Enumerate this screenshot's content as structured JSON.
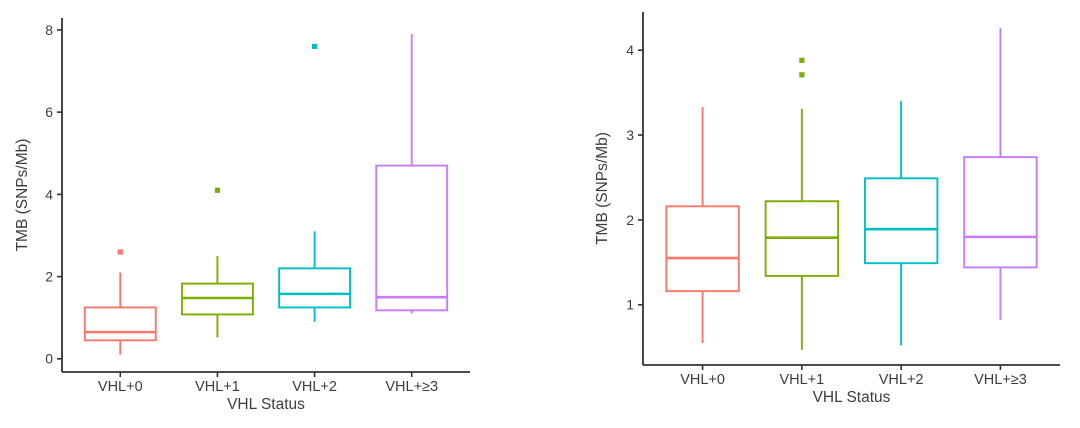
{
  "figure": {
    "description": "Two side-by-side box plots of tumor mutational burden by VHL status"
  },
  "chart_data": [
    {
      "type": "boxplot",
      "title": "",
      "xlabel": "VHL Status",
      "ylabel": "TMB (SNPs/Mb)",
      "categories": [
        "VHL+0",
        "VHL+1",
        "VHL+2",
        "VHL+≥3"
      ],
      "y_ticks": [
        0,
        2,
        4,
        6,
        8
      ],
      "ylim": [
        -0.32,
        8.29
      ],
      "grid": false,
      "legend": "none",
      "series": [
        {
          "category": "VHL+0",
          "color": "#F8766D",
          "whisker_low": 0.1,
          "q1": 0.45,
          "median": 0.65,
          "q3": 1.25,
          "whisker_high": 2.1,
          "outliers": [
            2.6
          ]
        },
        {
          "category": "VHL+1",
          "color": "#7CAE00",
          "whisker_low": 0.52,
          "q1": 1.08,
          "median": 1.48,
          "q3": 1.83,
          "whisker_high": 2.5,
          "outliers": [
            4.1
          ]
        },
        {
          "category": "VHL+2",
          "color": "#00BFC4",
          "whisker_low": 0.9,
          "q1": 1.25,
          "median": 1.58,
          "q3": 2.2,
          "whisker_high": 3.1,
          "outliers": [
            7.6
          ]
        },
        {
          "category": "VHL+≥3",
          "color": "#C77CFF",
          "whisker_low": 1.1,
          "q1": 1.18,
          "median": 1.5,
          "q3": 4.7,
          "whisker_high": 7.9,
          "outliers": []
        }
      ]
    },
    {
      "type": "boxplot",
      "title": "",
      "xlabel": "VHL Status",
      "ylabel": "TMB (SNPs/Mb)",
      "categories": [
        "VHL+0",
        "VHL+1",
        "VHL+2",
        "VHL+≥3"
      ],
      "y_ticks": [
        1,
        2,
        3,
        4
      ],
      "ylim": [
        0.29,
        4.45
      ],
      "grid": false,
      "legend": "none",
      "series": [
        {
          "category": "VHL+0",
          "color": "#F8766D",
          "whisker_low": 0.55,
          "q1": 1.16,
          "median": 1.55,
          "q3": 2.16,
          "whisker_high": 3.33,
          "outliers": []
        },
        {
          "category": "VHL+1",
          "color": "#7CAE00",
          "whisker_low": 0.47,
          "q1": 1.34,
          "median": 1.79,
          "q3": 2.22,
          "whisker_high": 3.31,
          "outliers": [
            3.71,
            3.88
          ]
        },
        {
          "category": "VHL+2",
          "color": "#00BFC4",
          "whisker_low": 0.52,
          "q1": 1.49,
          "median": 1.89,
          "q3": 2.49,
          "whisker_high": 3.4,
          "outliers": []
        },
        {
          "category": "VHL+≥3",
          "color": "#C77CFF",
          "whisker_low": 0.82,
          "q1": 1.44,
          "median": 1.8,
          "q3": 2.74,
          "whisker_high": 4.26,
          "outliers": []
        }
      ]
    }
  ]
}
